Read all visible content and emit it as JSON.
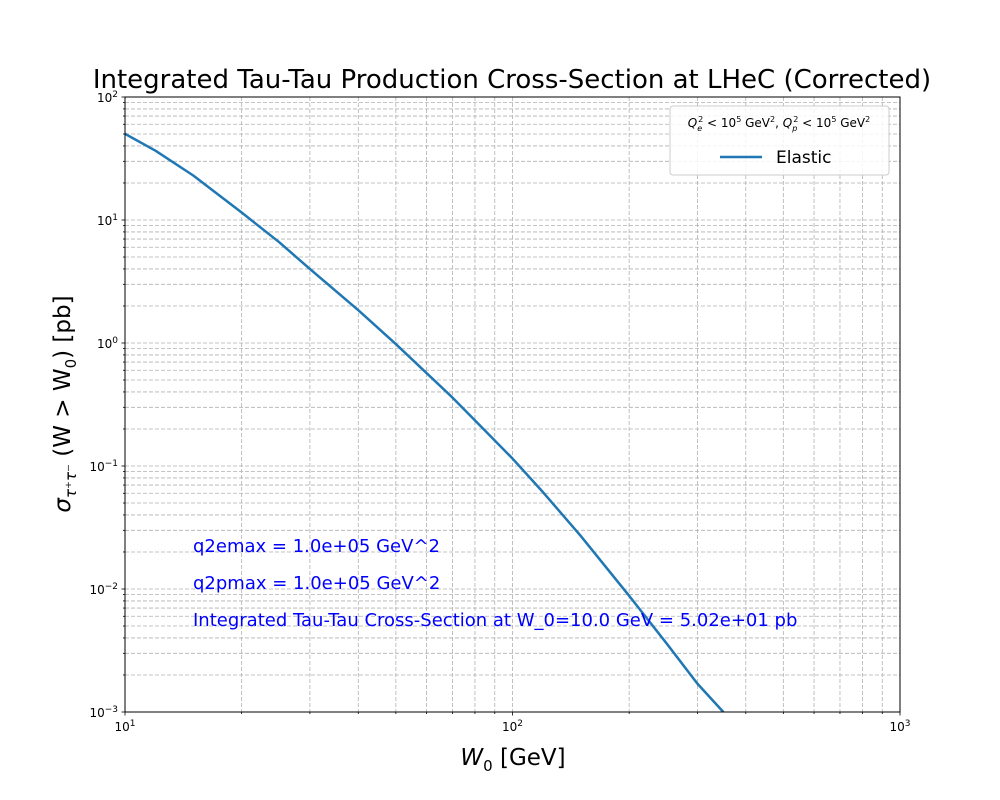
{
  "chart_data": {
    "type": "line",
    "title": "Integrated Tau-Tau Production Cross-Section at LHeC  (Corrected)",
    "xlabel": {
      "var": "W",
      "sub": "0",
      "unit": " [GeV]"
    },
    "ylabel": {
      "prefix": "σ",
      "sub": "τ⁺τ⁻",
      "rest": " (W > W",
      "sub2": "0",
      "end": ") [pb]"
    },
    "xscale": "log",
    "yscale": "log",
    "xlim": [
      10,
      1000
    ],
    "ylim": [
      0.001,
      100
    ],
    "x_ticks": [
      {
        "value": 10,
        "base": "10",
        "exp": "1"
      },
      {
        "value": 100,
        "base": "10",
        "exp": "2"
      },
      {
        "value": 1000,
        "base": "10",
        "exp": "3"
      }
    ],
    "y_ticks": [
      {
        "value": 0.001,
        "base": "10",
        "exp": "−3"
      },
      {
        "value": 0.01,
        "base": "10",
        "exp": "−2"
      },
      {
        "value": 0.1,
        "base": "10",
        "exp": "−1"
      },
      {
        "value": 1,
        "base": "10",
        "exp": "0"
      },
      {
        "value": 10,
        "base": "10",
        "exp": "1"
      },
      {
        "value": 100,
        "base": "10",
        "exp": "2"
      }
    ],
    "grid": "major and minor, dashed",
    "legend": {
      "placement": "upper right",
      "title": {
        "q": "Q",
        "e": "e",
        "p": "p",
        "sq": "2",
        "lt": " < 10",
        "five": "5",
        "gev": " GeV",
        "sep": ", "
      },
      "entries": [
        "Elastic"
      ]
    },
    "series": [
      {
        "name": "Elastic",
        "color": "#1f77b4",
        "x": [
          10,
          12,
          15,
          20,
          25,
          30,
          40,
          50,
          60,
          70,
          80,
          100,
          120,
          150,
          200,
          250,
          300,
          350
        ],
        "y": [
          50.2,
          36.5,
          23.0,
          11.5,
          6.6,
          4.0,
          1.85,
          0.98,
          0.57,
          0.36,
          0.235,
          0.115,
          0.061,
          0.027,
          0.0088,
          0.0036,
          0.0017,
          0.001
        ]
      }
    ],
    "annotations": [
      {
        "text": "q2emax = 1.0e+05 GeV^2",
        "color": "#0000ff"
      },
      {
        "text": "q2pmax = 1.0e+05 GeV^2",
        "color": "#0000ff"
      },
      {
        "text": "Integrated Tau-Tau Cross-Section at W_0=10.0 GeV = 5.02e+01 pb",
        "color": "#0000ff"
      }
    ]
  }
}
